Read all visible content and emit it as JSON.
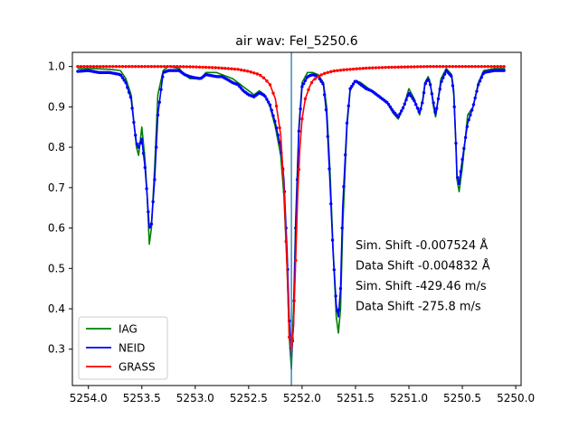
{
  "chart_data": {
    "type": "line",
    "title": "air wav: FeI_5250.6",
    "xlabel": "",
    "ylabel": "",
    "xlim": [
      5254.15,
      5249.95
    ],
    "ylim": [
      0.21,
      1.035
    ],
    "x_inverted": true,
    "grid": false,
    "xticks": [
      5254.0,
      5253.5,
      5253.0,
      5252.5,
      5252.0,
      5251.5,
      5251.0,
      5250.5,
      5250.0
    ],
    "xtick_labels": [
      "5254.0",
      "5253.5",
      "5253.0",
      "5252.5",
      "5252.0",
      "5251.5",
      "5251.0",
      "5250.5",
      "5250.0"
    ],
    "yticks": [
      0.3,
      0.4,
      0.5,
      0.6,
      0.7,
      0.8,
      0.9,
      1.0
    ],
    "ytick_labels": [
      "0.3",
      "0.4",
      "0.5",
      "0.6",
      "0.7",
      "0.8",
      "0.9",
      "1.0"
    ],
    "vline_x": 5252.1,
    "vline_color": "#1f77b4",
    "legend_position": "lower-left",
    "legend": [
      {
        "name": "IAG",
        "color": "#008000"
      },
      {
        "name": "NEID",
        "color": "#0000ff"
      },
      {
        "name": "GRASS",
        "color": "#ff0000"
      }
    ],
    "annotations": [
      "Sim. Shift -0.007524 Å",
      "Data Shift -0.004832 Å",
      "Sim. Shift -429.46 m/s",
      "Data Shift -275.8 m/s"
    ],
    "series": [
      {
        "name": "IAG",
        "color": "#008000",
        "x": [
          5254.1,
          5253.95,
          5253.8,
          5253.7,
          5253.65,
          5253.6,
          5253.55,
          5253.53,
          5253.5,
          5253.47,
          5253.45,
          5253.43,
          5253.41,
          5253.38,
          5253.35,
          5253.3,
          5253.25,
          5253.15,
          5253.1,
          5253.05,
          5253.0,
          5252.95,
          5252.9,
          5252.8,
          5252.75,
          5252.7,
          5252.65,
          5252.6,
          5252.55,
          5252.5,
          5252.45,
          5252.4,
          5252.35,
          5252.3,
          5252.25,
          5252.2,
          5252.17,
          5252.14,
          5252.12,
          5252.1,
          5252.08,
          5252.06,
          5252.03,
          5252.0,
          5251.95,
          5251.9,
          5251.85,
          5251.8,
          5251.77,
          5251.74,
          5251.71,
          5251.68,
          5251.66,
          5251.64,
          5251.62,
          5251.58,
          5251.55,
          5251.5,
          5251.45,
          5251.4,
          5251.35,
          5251.3,
          5251.25,
          5251.2,
          5251.15,
          5251.1,
          5251.05,
          5251.0,
          5250.95,
          5250.9,
          5250.87,
          5250.85,
          5250.82,
          5250.8,
          5250.77,
          5250.75,
          5250.7,
          5250.65,
          5250.6,
          5250.58,
          5250.56,
          5250.55,
          5250.53,
          5250.5,
          5250.45,
          5250.4,
          5250.35,
          5250.3,
          5250.2,
          5250.1
        ],
        "y": [
          0.995,
          0.995,
          0.993,
          0.99,
          0.97,
          0.93,
          0.8,
          0.78,
          0.85,
          0.77,
          0.68,
          0.56,
          0.6,
          0.75,
          0.93,
          0.99,
          1.0,
          0.995,
          0.98,
          0.97,
          0.97,
          0.97,
          0.985,
          0.985,
          0.98,
          0.975,
          0.97,
          0.96,
          0.95,
          0.94,
          0.93,
          0.94,
          0.93,
          0.9,
          0.85,
          0.78,
          0.68,
          0.5,
          0.33,
          0.25,
          0.4,
          0.62,
          0.85,
          0.96,
          0.985,
          0.985,
          0.98,
          0.96,
          0.9,
          0.75,
          0.55,
          0.38,
          0.34,
          0.4,
          0.6,
          0.85,
          0.94,
          0.965,
          0.96,
          0.95,
          0.94,
          0.93,
          0.92,
          0.91,
          0.885,
          0.87,
          0.9,
          0.945,
          0.92,
          0.88,
          0.92,
          0.96,
          0.975,
          0.96,
          0.9,
          0.875,
          0.97,
          0.995,
          0.98,
          0.94,
          0.8,
          0.72,
          0.69,
          0.75,
          0.88,
          0.9,
          0.96,
          0.99,
          0.995,
          0.995
        ]
      },
      {
        "name": "NEID",
        "color": "#0000ff",
        "x": [
          5254.1,
          5254.0,
          5253.9,
          5253.8,
          5253.7,
          5253.65,
          5253.6,
          5253.57,
          5253.55,
          5253.53,
          5253.5,
          5253.47,
          5253.45,
          5253.43,
          5253.41,
          5253.38,
          5253.35,
          5253.3,
          5253.25,
          5253.15,
          5253.1,
          5253.05,
          5253.0,
          5252.95,
          5252.9,
          5252.8,
          5252.75,
          5252.7,
          5252.65,
          5252.6,
          5252.55,
          5252.5,
          5252.45,
          5252.4,
          5252.35,
          5252.3,
          5252.25,
          5252.2,
          5252.17,
          5252.14,
          5252.12,
          5252.1,
          5252.08,
          5252.06,
          5252.03,
          5252.0,
          5251.95,
          5251.9,
          5251.85,
          5251.8,
          5251.77,
          5251.74,
          5251.71,
          5251.68,
          5251.66,
          5251.64,
          5251.62,
          5251.58,
          5251.55,
          5251.5,
          5251.45,
          5251.4,
          5251.35,
          5251.3,
          5251.25,
          5251.2,
          5251.15,
          5251.1,
          5251.05,
          5251.0,
          5250.95,
          5250.9,
          5250.87,
          5250.85,
          5250.82,
          5250.8,
          5250.77,
          5250.75,
          5250.7,
          5250.65,
          5250.6,
          5250.58,
          5250.56,
          5250.55,
          5250.53,
          5250.5,
          5250.45,
          5250.4,
          5250.35,
          5250.3,
          5250.2,
          5250.1
        ],
        "y": [
          0.988,
          0.99,
          0.985,
          0.985,
          0.98,
          0.96,
          0.92,
          0.85,
          0.81,
          0.8,
          0.82,
          0.75,
          0.68,
          0.6,
          0.61,
          0.72,
          0.88,
          0.985,
          0.99,
          0.99,
          0.98,
          0.975,
          0.972,
          0.97,
          0.98,
          0.975,
          0.975,
          0.968,
          0.96,
          0.955,
          0.94,
          0.93,
          0.925,
          0.935,
          0.928,
          0.905,
          0.86,
          0.8,
          0.72,
          0.54,
          0.37,
          0.28,
          0.36,
          0.6,
          0.84,
          0.95,
          0.975,
          0.98,
          0.975,
          0.955,
          0.88,
          0.72,
          0.54,
          0.41,
          0.38,
          0.45,
          0.65,
          0.86,
          0.945,
          0.965,
          0.955,
          0.945,
          0.94,
          0.93,
          0.92,
          0.91,
          0.89,
          0.875,
          0.9,
          0.935,
          0.915,
          0.885,
          0.915,
          0.955,
          0.97,
          0.955,
          0.91,
          0.88,
          0.96,
          0.99,
          0.975,
          0.93,
          0.81,
          0.73,
          0.71,
          0.77,
          0.86,
          0.9,
          0.955,
          0.985,
          0.99,
          0.99
        ]
      },
      {
        "name": "GRASS",
        "color": "#ff0000",
        "x": [
          5254.1,
          5253.8,
          5253.5,
          5253.2,
          5253.0,
          5252.8,
          5252.6,
          5252.5,
          5252.4,
          5252.35,
          5252.3,
          5252.25,
          5252.2,
          5252.17,
          5252.14,
          5252.12,
          5252.1,
          5252.08,
          5252.06,
          5252.04,
          5252.02,
          5252.0,
          5251.97,
          5251.93,
          5251.9,
          5251.85,
          5251.8,
          5251.75,
          5251.7,
          5251.6,
          5251.5,
          5251.4,
          5251.3,
          5251.2,
          5251.0,
          5250.8,
          5250.6,
          5250.4,
          5250.1
        ],
        "y": [
          1.0,
          1.0,
          1.0,
          1.0,
          0.999,
          0.997,
          0.993,
          0.988,
          0.98,
          0.97,
          0.955,
          0.92,
          0.83,
          0.7,
          0.5,
          0.33,
          0.29,
          0.36,
          0.52,
          0.69,
          0.8,
          0.87,
          0.92,
          0.95,
          0.965,
          0.975,
          0.982,
          0.986,
          0.989,
          0.992,
          0.994,
          0.996,
          0.997,
          0.998,
          0.999,
          1.0,
          1.0,
          1.0,
          1.0
        ]
      }
    ]
  }
}
